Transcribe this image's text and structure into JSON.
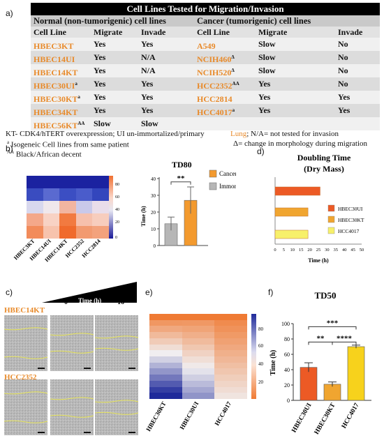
{
  "panels": {
    "a": "a)",
    "b": "b)",
    "c": "c)",
    "d": "d)",
    "e": "e)",
    "f": "f)"
  },
  "table": {
    "title": "Cell Lines Tested for Migration/Invasion",
    "normal_header": "Normal (non-tumorigenic) cell lines",
    "cancer_header": "Cancer (tumorigenic) cell lines",
    "columns": [
      "Cell Line",
      "Migrate",
      "Invade",
      "Cell Line",
      "Migrate",
      "Invade"
    ],
    "rows": [
      {
        "n_line": "HBEC3KT",
        "n_sup": "",
        "n_mig": "Yes",
        "n_inv": "Yes",
        "c_line": "A549",
        "c_sup": "",
        "c_mig": "Slow",
        "c_inv": "No"
      },
      {
        "n_line": "HBEC14UI",
        "n_sup": "",
        "n_mig": "Yes",
        "n_inv": "N/A",
        "c_line": "NCIH460",
        "c_sup": "Δ",
        "c_mig": "Slow",
        "c_inv": "No"
      },
      {
        "n_line": "HBEC14KT",
        "n_sup": "",
        "n_mig": "Yes",
        "n_inv": "N/A",
        "c_line": "NCIH520",
        "c_sup": "Δ",
        "c_mig": "Slow",
        "c_inv": "No"
      },
      {
        "n_line": "HBEC30UI",
        "n_sup": "a",
        "n_mig": "Yes",
        "n_inv": "Yes",
        "c_line": "HCC2352",
        "c_sup": "AA",
        "c_mig": "Yes",
        "c_inv": "No"
      },
      {
        "n_line": "HBEC30KT",
        "n_sup": "a",
        "n_mig": "Yes",
        "n_inv": "Yes",
        "c_line": "HCC2814",
        "c_sup": "",
        "c_mig": "Yes",
        "c_inv": "Yes"
      },
      {
        "n_line": "HBEC34KT",
        "n_sup": "",
        "n_mig": "Yes",
        "n_inv": "Yes",
        "c_line": "HCC4017",
        "c_sup": "a",
        "c_mig": "Yes",
        "c_inv": "Yes"
      },
      {
        "n_line": "HBEC56KT",
        "n_sup": "AA",
        "n_mig": "Slow",
        "n_inv": "Slow",
        "c_line": "",
        "c_sup": "",
        "c_mig": "",
        "c_inv": ""
      }
    ],
    "notes": {
      "kt": "KT- CDK4/hTERT overexpression; UI un-immortalized/primary",
      "iso_sup": "a",
      "iso": " Isogeneic Cell lines from same patient",
      "aa_sup": "AA",
      "aa": " Black/African decent",
      "lung": "Lung",
      "na": "; N/A= not tested for invasion",
      "delta": "Δ= change in morphology during migration"
    }
  },
  "heatmap_b": {
    "xlabels": [
      "HBEC3KT",
      "HBEC14UI",
      "HBEC14KT",
      "HCC2352",
      "HCC2814"
    ],
    "colorbar_ticks": [
      "80",
      "60",
      "40",
      "20",
      "0"
    ]
  },
  "chart_data": [
    {
      "type": "bar",
      "title": "TD80",
      "ylabel": "Time (h)",
      "categories": [
        "Immortalized/ Primary",
        "Cancer"
      ],
      "values": [
        13,
        27
      ],
      "errors": [
        4,
        8
      ],
      "ylim": [
        0,
        40
      ],
      "yticks": [
        "0",
        "10",
        "20",
        "30",
        "40"
      ],
      "significance": "**",
      "legend": [
        "Cancer",
        "Immortalized/ Primary"
      ],
      "colors": [
        "#f39a2e",
        "#b6b6b6"
      ]
    },
    {
      "type": "bar",
      "title": "Doubling Time (Dry Mass)",
      "xlabel": "Time (h)",
      "categories": [
        "HBEC30UI",
        "HBEC30KT",
        "HCC4017"
      ],
      "values": [
        26,
        19,
        19
      ],
      "xlim": [
        0,
        50
      ],
      "xticks": [
        "0",
        "5",
        "10",
        "15",
        "20",
        "25",
        "30",
        "35",
        "40",
        "45",
        "50"
      ],
      "legend": [
        "HBEC30UI",
        "HBEC30KT",
        "HCC4017"
      ],
      "colors": [
        "#ec5a25",
        "#f0a530",
        "#f7f06a"
      ]
    },
    {
      "type": "bar",
      "title": "TD50",
      "ylabel": "Time (h)",
      "categories": [
        "HBEC30UI",
        "HBEC30KT",
        "HCC4017"
      ],
      "values": [
        43,
        21,
        70
      ],
      "errors": [
        6,
        3,
        2
      ],
      "ylim": [
        0,
        100
      ],
      "yticks": [
        "0",
        "20",
        "40",
        "60",
        "80",
        "100"
      ],
      "significance": [
        "**",
        "****",
        "***"
      ],
      "colors": [
        "#ec5a25",
        "#f0a530",
        "#f7d21c"
      ]
    }
  ],
  "scratch": {
    "time_label": "Time (h)",
    "t0": "0",
    "t16": "16",
    "label_top": "HBEC14KT",
    "label_bottom": "HCC2352"
  },
  "heatmap_e": {
    "xlabels": [
      "HBEC30KT",
      "HBEC30UI",
      "HCC4017"
    ],
    "colorbar_ticks": [
      "80",
      "60",
      "40",
      "20"
    ]
  },
  "colors": {
    "orange": "#e88a2a"
  }
}
